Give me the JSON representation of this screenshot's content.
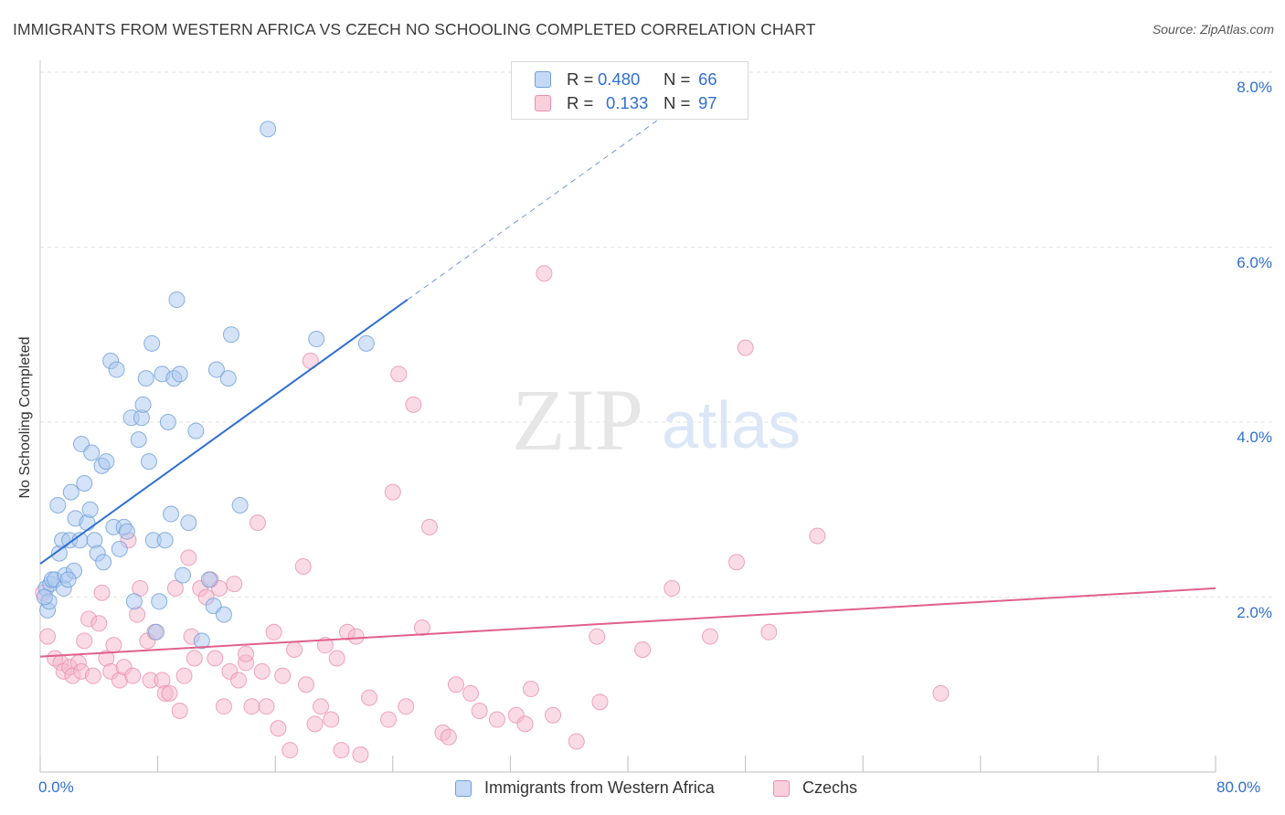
{
  "title": "IMMIGRANTS FROM WESTERN AFRICA VS CZECH NO SCHOOLING COMPLETED CORRELATION CHART",
  "source": "Source: ZipAtlas.com",
  "watermark": {
    "zip": "ZIP",
    "atlas": "atlas"
  },
  "legend_top": [
    {
      "r_key": "R =",
      "r_value": "0.480",
      "n_key": "N =",
      "n_value": "66"
    },
    {
      "r_key": "R =",
      "r_value": "0.133",
      "n_key": "N =",
      "n_value": "97"
    }
  ],
  "legend_bottom": [
    "Immigrants from Western Africa",
    "Czechs"
  ],
  "x_tick_labels": {
    "left": "0.0%",
    "right": "80.0%"
  },
  "y_tick_labels": [
    "8.0%",
    "6.0%",
    "4.0%",
    "2.0%"
  ],
  "colors": {
    "blue_fill": "#a9c7ef",
    "blue_stroke": "#6f9fd8",
    "blue_line": "#2f6fd1",
    "pink_fill": "#f6b8cb",
    "pink_stroke": "#eb8fae",
    "pink_line": "#e0608e",
    "tick_text": "#2f6fd1",
    "grid": "#e3e3e3"
  },
  "chart_data": {
    "type": "scatter",
    "title": "IMMIGRANTS FROM WESTERN AFRICA VS CZECH NO SCHOOLING COMPLETED CORRELATION CHART",
    "xlabel": "",
    "ylabel": "No Schooling Completed",
    "xlim": [
      0,
      80
    ],
    "ylim": [
      0,
      8.0
    ],
    "grid": true,
    "legend_position": "bottom",
    "series": [
      {
        "name": "Immigrants from Western Africa",
        "r": 0.48,
        "n": 66,
        "trend": {
          "x": [
            0,
            25
          ],
          "y": [
            2.38,
            5.4
          ],
          "extended_to": [
            44.5,
            7.75
          ]
        },
        "points": [
          [
            0.4,
            2.1
          ],
          [
            0.5,
            1.85
          ],
          [
            0.6,
            1.95
          ],
          [
            0.7,
            2.15
          ],
          [
            0.8,
            2.2
          ],
          [
            1.0,
            2.2
          ],
          [
            1.2,
            3.05
          ],
          [
            1.3,
            2.5
          ],
          [
            1.5,
            2.65
          ],
          [
            1.6,
            2.1
          ],
          [
            1.7,
            2.25
          ],
          [
            2.0,
            2.65
          ],
          [
            2.1,
            3.2
          ],
          [
            2.3,
            2.3
          ],
          [
            2.4,
            2.9
          ],
          [
            2.7,
            2.65
          ],
          [
            2.8,
            3.75
          ],
          [
            3.0,
            3.3
          ],
          [
            3.2,
            2.85
          ],
          [
            3.4,
            3.0
          ],
          [
            3.5,
            3.65
          ],
          [
            3.7,
            2.65
          ],
          [
            3.9,
            2.5
          ],
          [
            4.2,
            3.5
          ],
          [
            4.3,
            2.4
          ],
          [
            4.5,
            3.55
          ],
          [
            4.8,
            4.7
          ],
          [
            5.0,
            2.8
          ],
          [
            5.2,
            4.6
          ],
          [
            5.4,
            2.55
          ],
          [
            5.7,
            2.8
          ],
          [
            5.9,
            2.75
          ],
          [
            6.2,
            4.05
          ],
          [
            6.4,
            1.95
          ],
          [
            6.7,
            3.8
          ],
          [
            6.9,
            4.05
          ],
          [
            7.0,
            4.2
          ],
          [
            7.2,
            4.5
          ],
          [
            7.4,
            3.55
          ],
          [
            7.6,
            4.9
          ],
          [
            7.7,
            2.65
          ],
          [
            7.9,
            1.6
          ],
          [
            8.1,
            1.95
          ],
          [
            8.3,
            4.55
          ],
          [
            8.5,
            2.65
          ],
          [
            8.7,
            4.0
          ],
          [
            8.9,
            2.95
          ],
          [
            9.1,
            4.5
          ],
          [
            9.3,
            5.4
          ],
          [
            9.5,
            4.55
          ],
          [
            9.7,
            2.25
          ],
          [
            10.1,
            2.85
          ],
          [
            10.6,
            3.9
          ],
          [
            11.0,
            1.5
          ],
          [
            11.5,
            2.2
          ],
          [
            11.8,
            1.9
          ],
          [
            12.0,
            4.6
          ],
          [
            12.5,
            1.8
          ],
          [
            12.8,
            4.5
          ],
          [
            13.0,
            5.0
          ],
          [
            13.6,
            3.05
          ],
          [
            15.5,
            7.35
          ],
          [
            18.8,
            4.95
          ],
          [
            22.2,
            4.9
          ],
          [
            1.9,
            2.2
          ],
          [
            0.3,
            2.0
          ]
        ]
      },
      {
        "name": "Czechs",
        "r": 0.133,
        "n": 97,
        "trend": {
          "x": [
            0,
            80
          ],
          "y": [
            1.32,
            2.1
          ]
        },
        "points": [
          [
            0.5,
            1.55
          ],
          [
            1.0,
            1.3
          ],
          [
            1.4,
            1.25
          ],
          [
            1.6,
            1.15
          ],
          [
            2.0,
            1.2
          ],
          [
            2.2,
            1.1
          ],
          [
            2.6,
            1.25
          ],
          [
            2.8,
            1.15
          ],
          [
            3.0,
            1.5
          ],
          [
            3.3,
            1.75
          ],
          [
            3.6,
            1.1
          ],
          [
            4.0,
            1.7
          ],
          [
            4.2,
            2.05
          ],
          [
            4.5,
            1.3
          ],
          [
            4.8,
            1.15
          ],
          [
            5.0,
            1.45
          ],
          [
            5.4,
            1.05
          ],
          [
            5.7,
            1.2
          ],
          [
            6.0,
            2.65
          ],
          [
            6.3,
            1.1
          ],
          [
            6.6,
            1.8
          ],
          [
            6.8,
            2.1
          ],
          [
            7.3,
            1.5
          ],
          [
            7.5,
            1.05
          ],
          [
            7.8,
            1.6
          ],
          [
            8.3,
            1.05
          ],
          [
            8.5,
            0.9
          ],
          [
            8.8,
            0.9
          ],
          [
            9.2,
            2.1
          ],
          [
            9.5,
            0.7
          ],
          [
            9.8,
            1.1
          ],
          [
            10.1,
            2.45
          ],
          [
            10.3,
            1.55
          ],
          [
            10.5,
            1.3
          ],
          [
            10.9,
            2.1
          ],
          [
            11.3,
            2.0
          ],
          [
            11.6,
            2.2
          ],
          [
            11.9,
            1.3
          ],
          [
            12.2,
            2.1
          ],
          [
            12.5,
            0.75
          ],
          [
            12.9,
            1.15
          ],
          [
            13.2,
            2.15
          ],
          [
            13.5,
            1.05
          ],
          [
            14.0,
            1.25
          ],
          [
            14.4,
            0.75
          ],
          [
            14.8,
            2.85
          ],
          [
            15.1,
            1.15
          ],
          [
            15.4,
            0.75
          ],
          [
            15.9,
            1.6
          ],
          [
            16.2,
            0.5
          ],
          [
            16.5,
            1.1
          ],
          [
            17.0,
            0.25
          ],
          [
            17.3,
            1.4
          ],
          [
            17.9,
            2.35
          ],
          [
            18.1,
            1.0
          ],
          [
            18.4,
            4.7
          ],
          [
            18.7,
            0.55
          ],
          [
            19.1,
            0.75
          ],
          [
            19.4,
            1.45
          ],
          [
            19.8,
            0.6
          ],
          [
            20.2,
            1.3
          ],
          [
            20.5,
            0.25
          ],
          [
            20.9,
            1.6
          ],
          [
            21.5,
            1.55
          ],
          [
            21.8,
            0.2
          ],
          [
            22.4,
            0.85
          ],
          [
            24.4,
            4.55
          ],
          [
            24.9,
            0.75
          ],
          [
            25.4,
            4.2
          ],
          [
            26.5,
            2.8
          ],
          [
            27.4,
            0.45
          ],
          [
            27.8,
            0.4
          ],
          [
            28.3,
            1.0
          ],
          [
            29.3,
            0.9
          ],
          [
            29.9,
            0.7
          ],
          [
            31.1,
            0.6
          ],
          [
            32.4,
            0.65
          ],
          [
            33.0,
            0.55
          ],
          [
            33.4,
            0.95
          ],
          [
            34.3,
            5.7
          ],
          [
            34.9,
            0.65
          ],
          [
            36.5,
            0.35
          ],
          [
            37.9,
            1.55
          ],
          [
            38.1,
            0.8
          ],
          [
            41.0,
            1.4
          ],
          [
            43.0,
            2.1
          ],
          [
            45.6,
            1.55
          ],
          [
            47.4,
            2.4
          ],
          [
            48.0,
            4.85
          ],
          [
            49.6,
            1.6
          ],
          [
            52.9,
            2.7
          ],
          [
            61.3,
            0.9
          ],
          [
            14.0,
            1.35
          ],
          [
            23.7,
            0.6
          ],
          [
            26.0,
            1.65
          ],
          [
            24.0,
            3.2
          ],
          [
            0.2,
            2.05
          ]
        ]
      }
    ]
  }
}
